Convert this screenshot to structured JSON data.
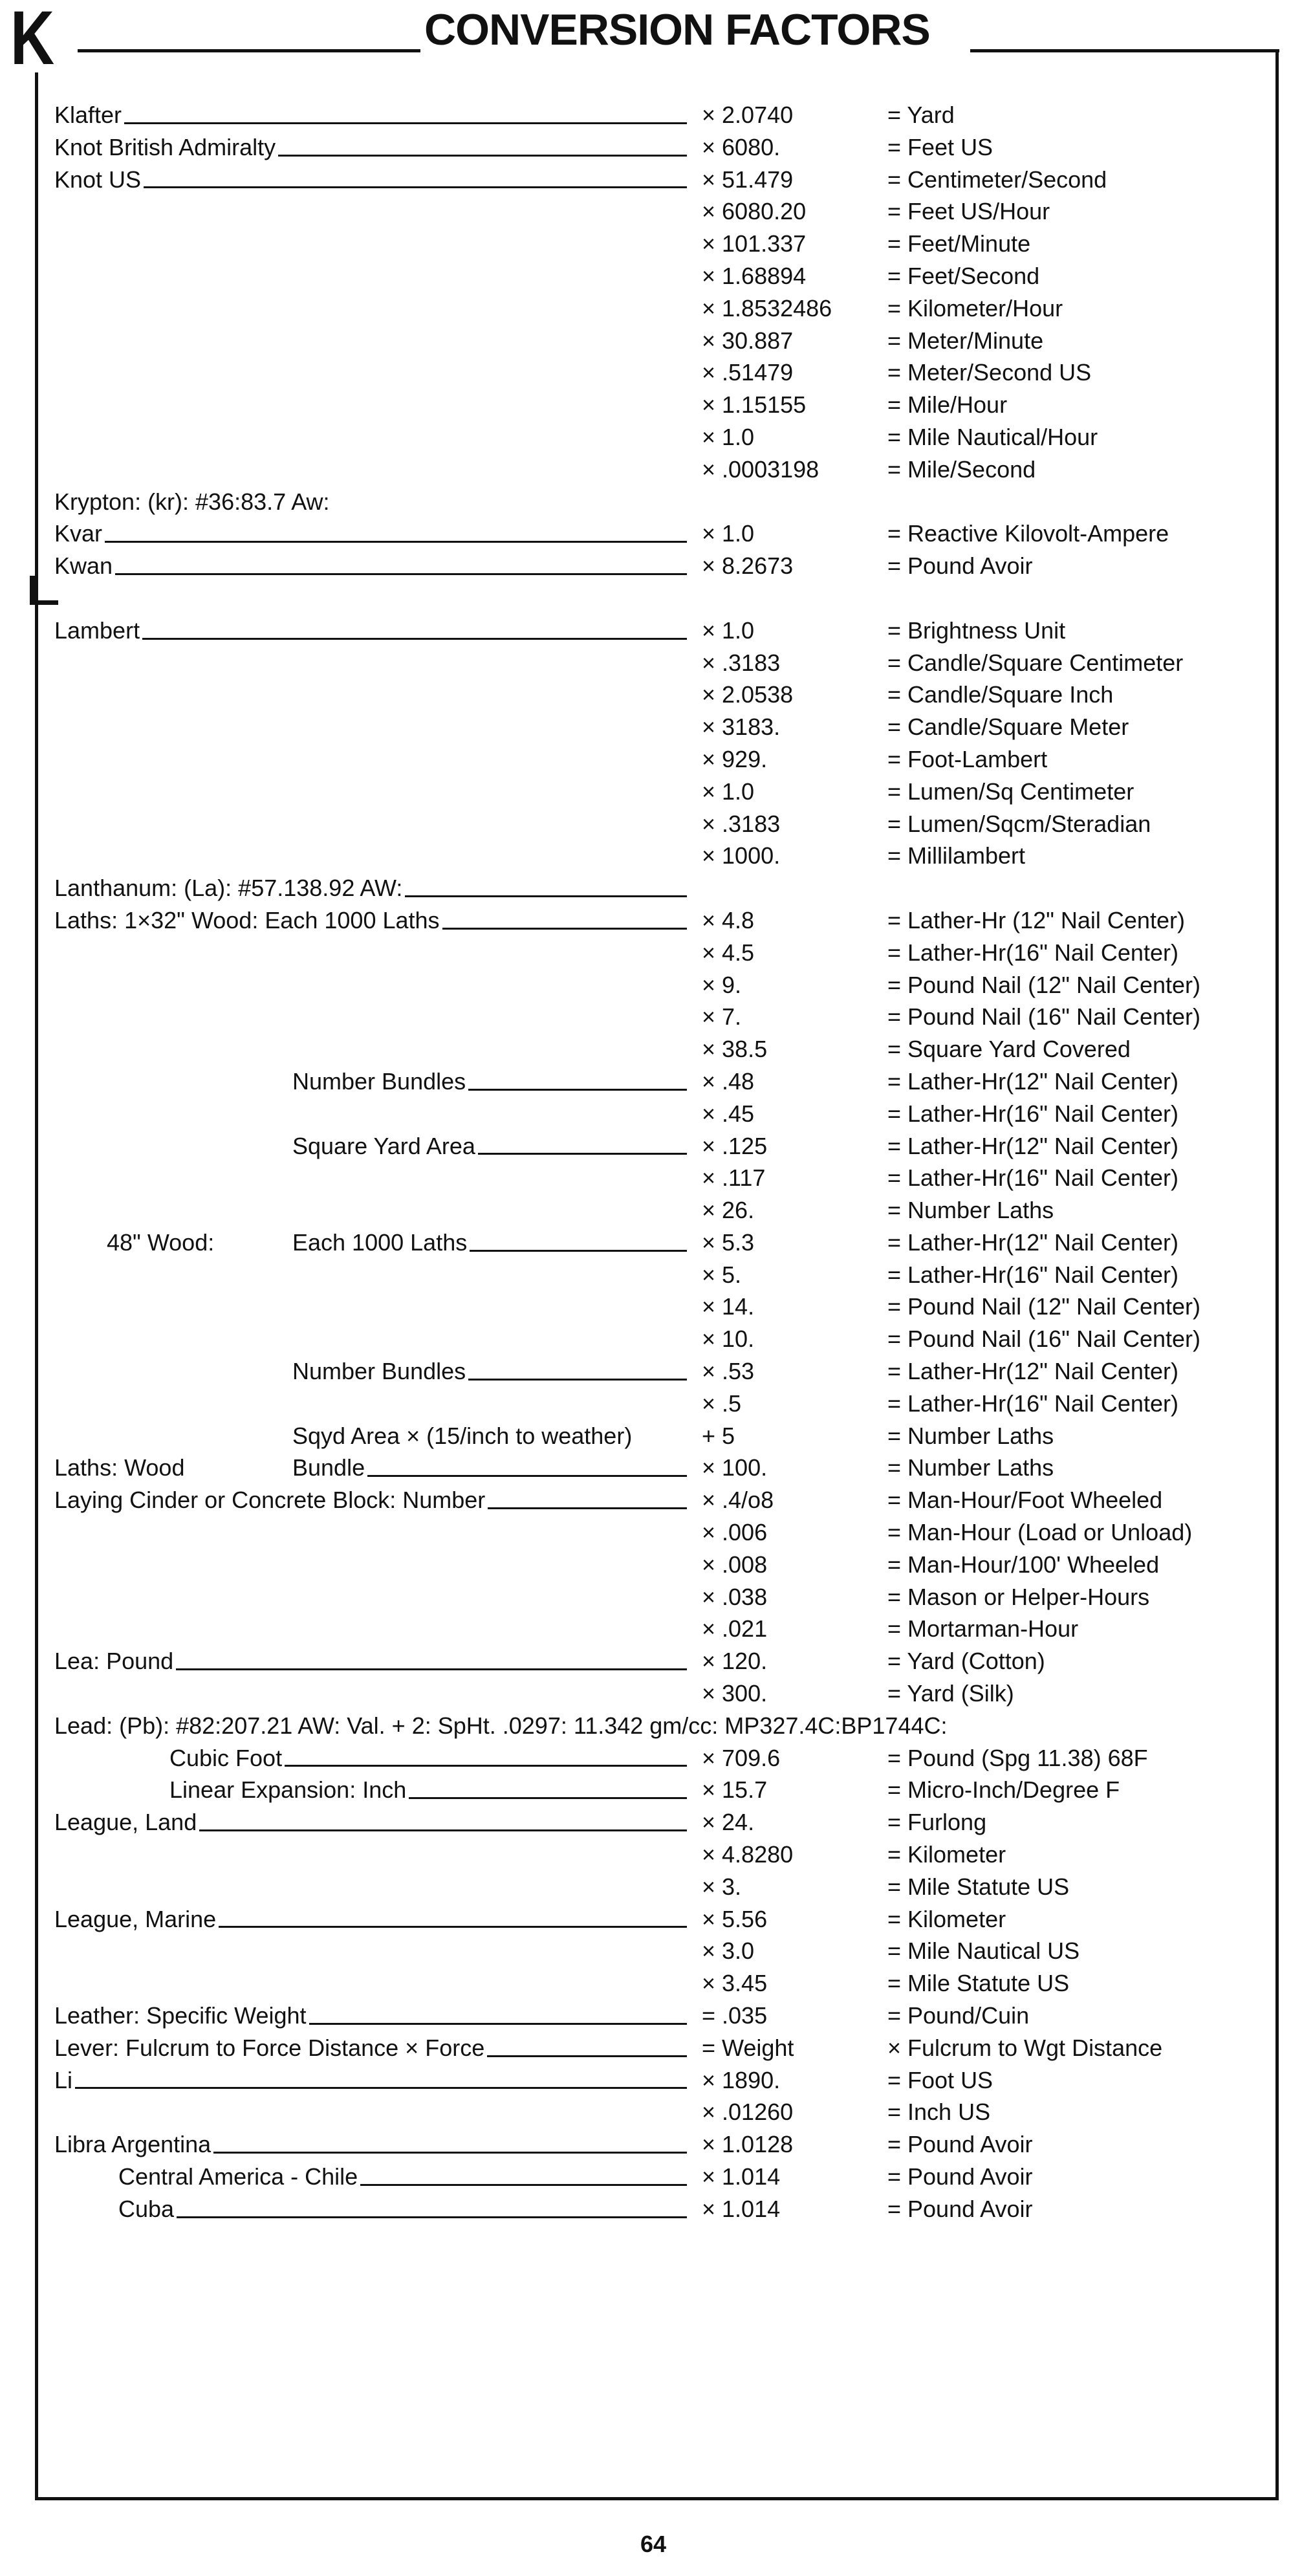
{
  "header": {
    "section_letter": "K",
    "title": "CONVERSION FACTORS"
  },
  "sections": [
    {
      "letter": "K",
      "rows": [
        {
          "name": "Klafter",
          "leader": true,
          "mult": "× 2.0740",
          "result": "= Yard"
        },
        {
          "name": "Knot British Admiralty",
          "leader": true,
          "mult": "× 6080.",
          "result": "= Feet US"
        },
        {
          "name": "Knot US",
          "leader": true,
          "mult": "× 51.479",
          "result": "= Centimeter/Second"
        },
        {
          "name": "",
          "mult": "× 6080.20",
          "result": "= Feet US/Hour"
        },
        {
          "name": "",
          "mult": "× 101.337",
          "result": "= Feet/Minute"
        },
        {
          "name": "",
          "mult": "× 1.68894",
          "result": "= Feet/Second"
        },
        {
          "name": "",
          "mult": "× 1.8532486",
          "result": "= Kilometer/Hour"
        },
        {
          "name": "",
          "mult": "× 30.887",
          "result": "= Meter/Minute"
        },
        {
          "name": "",
          "mult": "× .51479",
          "result": "= Meter/Second US"
        },
        {
          "name": "",
          "mult": "× 1.15155",
          "result": "= Mile/Hour"
        },
        {
          "name": "",
          "mult": "× 1.0",
          "result": "= Mile Nautical/Hour"
        },
        {
          "name": "",
          "mult": "× .0003198",
          "result": "= Mile/Second"
        },
        {
          "name": "Krypton: (kr): #36:83.7 Aw:",
          "leader": false,
          "mult": "",
          "result": ""
        },
        {
          "name": "Kvar",
          "leader": true,
          "mult": "× 1.0",
          "result": "= Reactive Kilovolt-Ampere"
        },
        {
          "name": "Kwan",
          "leader": true,
          "mult": "× 8.2673",
          "result": "= Pound Avoir"
        }
      ]
    },
    {
      "letter": "L",
      "rows": [
        {
          "name": "Lambert",
          "leader": true,
          "mult": "× 1.0",
          "result": "= Brightness Unit"
        },
        {
          "name": "",
          "mult": "× .3183",
          "result": "= Candle/Square Centimeter"
        },
        {
          "name": "",
          "mult": "× 2.0538",
          "result": "= Candle/Square Inch"
        },
        {
          "name": "",
          "mult": "× 3183.",
          "result": "= Candle/Square Meter"
        },
        {
          "name": "",
          "mult": "× 929.",
          "result": "= Foot-Lambert"
        },
        {
          "name": "",
          "mult": "× 1.0",
          "result": "= Lumen/Sq Centimeter"
        },
        {
          "name": "",
          "mult": "× .3183",
          "result": "= Lumen/Sqcm/Steradian"
        },
        {
          "name": "",
          "mult": "× 1000.",
          "result": "= Millilambert"
        },
        {
          "name": "Lanthanum: (La): #57.138.92 AW:",
          "leader": true,
          "mult": "",
          "result": ""
        },
        {
          "name": "Laths: 1×32\" Wood: Each 1000 Laths",
          "leader": true,
          "mult": "× 4.8",
          "result": "= Lather-Hr (12\" Nail Center)"
        },
        {
          "name": "",
          "mult": "× 4.5",
          "result": "= Lather-Hr(16\" Nail Center)"
        },
        {
          "name": "",
          "mult": "× 9.",
          "result": "= Pound Nail (12\" Nail Center)"
        },
        {
          "name": "",
          "mult": "× 7.",
          "result": "= Pound Nail (16\" Nail Center)"
        },
        {
          "name": "",
          "mult": "× 38.5",
          "result": "= Square Yard Covered"
        },
        {
          "name": "Number Bundles",
          "leader": true,
          "mult": "× .48",
          "result": "= Lather-Hr(12\" Nail Center)"
        },
        {
          "name": "",
          "mult": "× .45",
          "result": "= Lather-Hr(16\" Nail Center)"
        },
        {
          "name": "Square Yard Area",
          "leader": true,
          "mult": "× .125",
          "result": "= Lather-Hr(12\" Nail Center)"
        },
        {
          "name": "",
          "mult": "× .117",
          "result": "= Lather-Hr(16\" Nail Center)"
        },
        {
          "name": "",
          "mult": "× 26.",
          "result": "= Number Laths"
        },
        {
          "name": "48\" Wood:",
          "name2": "Each 1000 Laths",
          "leader": true,
          "mult": "× 5.3",
          "result": "= Lather-Hr(12\" Nail Center)"
        },
        {
          "name": "",
          "mult": "× 5.",
          "result": "= Lather-Hr(16\" Nail Center)"
        },
        {
          "name": "",
          "mult": "× 14.",
          "result": "= Pound Nail (12\" Nail Center)"
        },
        {
          "name": "",
          "mult": "× 10.",
          "result": "= Pound Nail (16\" Nail Center)"
        },
        {
          "name": "Number Bundles",
          "leader": true,
          "mult": "× .53",
          "result": "= Lather-Hr(12\" Nail Center)"
        },
        {
          "name": "",
          "mult": "× .5",
          "result": "= Lather-Hr(16\" Nail Center)"
        },
        {
          "name": "Sqyd Area × (15/inch to weather)",
          "leader": false,
          "mult": "+ 5",
          "result": "= Number Laths"
        },
        {
          "name": "Laths: Wood",
          "name2": "Bundle",
          "leader": true,
          "mult": "× 100.",
          "result": "= Number Laths"
        },
        {
          "name": "Laying Cinder or Concrete Block: Number",
          "leader": true,
          "mult": "× .4/o8",
          "result": "= Man-Hour/Foot Wheeled"
        },
        {
          "name": "",
          "mult": "× .006",
          "result": "= Man-Hour (Load or Unload)"
        },
        {
          "name": "",
          "mult": "× .008",
          "result": "= Man-Hour/100' Wheeled"
        },
        {
          "name": "",
          "mult": "× .038",
          "result": "= Mason or Helper-Hours"
        },
        {
          "name": "",
          "mult": "× .021",
          "result": "= Mortarman-Hour"
        },
        {
          "name": "Lea: Pound",
          "leader": true,
          "mult": "× 120.",
          "result": "= Yard (Cotton)"
        },
        {
          "name": "",
          "mult": "× 300.",
          "result": "= Yard (Silk)"
        },
        {
          "name": "Lead: (Pb): #82:207.21 AW: Val. + 2: SpHt. .0297: 11.342 gm/cc: MP327.4C:BP1744C:",
          "leader": false,
          "mult": "",
          "result": ""
        },
        {
          "name": "Cubic Foot",
          "leader": true,
          "mult": "× 709.6",
          "result": "= Pound (Spg 11.38) 68F"
        },
        {
          "name": "Linear Expansion: Inch",
          "leader": true,
          "mult": "× 15.7",
          "result": "= Micro-Inch/Degree F"
        },
        {
          "name": "League, Land",
          "leader": true,
          "mult": "× 24.",
          "result": "= Furlong"
        },
        {
          "name": "",
          "mult": "× 4.8280",
          "result": "= Kilometer"
        },
        {
          "name": "",
          "mult": "× 3.",
          "result": "= Mile Statute US"
        },
        {
          "name": "League, Marine",
          "leader": true,
          "mult": "× 5.56",
          "result": "= Kilometer"
        },
        {
          "name": "",
          "mult": "× 3.0",
          "result": "= Mile Nautical US"
        },
        {
          "name": "",
          "mult": "× 3.45",
          "result": "= Mile Statute US"
        },
        {
          "name": "Leather: Specific Weight",
          "leader": true,
          "mult": "= .035",
          "result": "= Pound/Cuin"
        },
        {
          "name": "Lever: Fulcrum to Force Distance × Force",
          "leader": true,
          "mult": "= Weight",
          "result": "× Fulcrum to Wgt Distance"
        },
        {
          "name": "Li",
          "leader": true,
          "mult": "× 1890.",
          "result": "= Foot US"
        },
        {
          "name": "",
          "mult": "× .01260",
          "result": "= Inch US"
        },
        {
          "name": "Libra Argentina",
          "leader": true,
          "mult": "× 1.0128",
          "result": "= Pound Avoir"
        },
        {
          "name": "Central America - Chile",
          "leader": true,
          "mult": "× 1.014",
          "result": "= Pound Avoir"
        },
        {
          "name": "Cuba",
          "leader": true,
          "mult": "× 1.014",
          "result": "= Pound Avoir"
        }
      ]
    }
  ],
  "footer": {
    "page_number": "64"
  }
}
